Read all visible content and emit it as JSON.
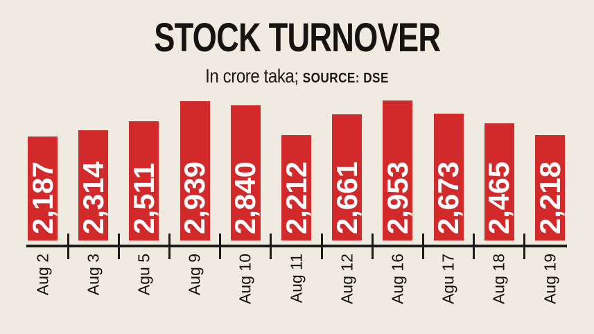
{
  "title": "STOCK TURNOVER",
  "subtitle": "In crore taka;",
  "source": "SOURCE: DSE",
  "colors": {
    "background": "#F0EBE1",
    "bar": "#D2292A",
    "axis": "#1A1A1A",
    "title_text": "#161310",
    "value_text": "#FFFFFF"
  },
  "chart_data": {
    "type": "bar",
    "title": "STOCK TURNOVER",
    "subtitle": "In crore taka;",
    "source": "SOURCE: DSE",
    "categories": [
      "Aug 2",
      "Aug 3",
      "Agu 5",
      "Aug 9",
      "Aug 10",
      "Aug 11",
      "Aug 12",
      "Aug 16",
      "Agu 17",
      "Aug 18",
      "Aug 19"
    ],
    "values": [
      2187,
      2314,
      2511,
      2939,
      2840,
      2212,
      2661,
      2953,
      2673,
      2465,
      2218
    ],
    "value_labels": [
      "2,187",
      "2,314",
      "2,511",
      "2,939",
      "2,840",
      "2,212",
      "2,661",
      "2,953",
      "2,673",
      "2,465",
      "2,218"
    ],
    "xlabel": "",
    "ylabel": "",
    "unit": "crore taka",
    "ylim": [
      0,
      3000
    ],
    "grid": false,
    "legend": false,
    "value_label_position": "inside-bottom-rotated",
    "tick_position": "between-bars"
  }
}
